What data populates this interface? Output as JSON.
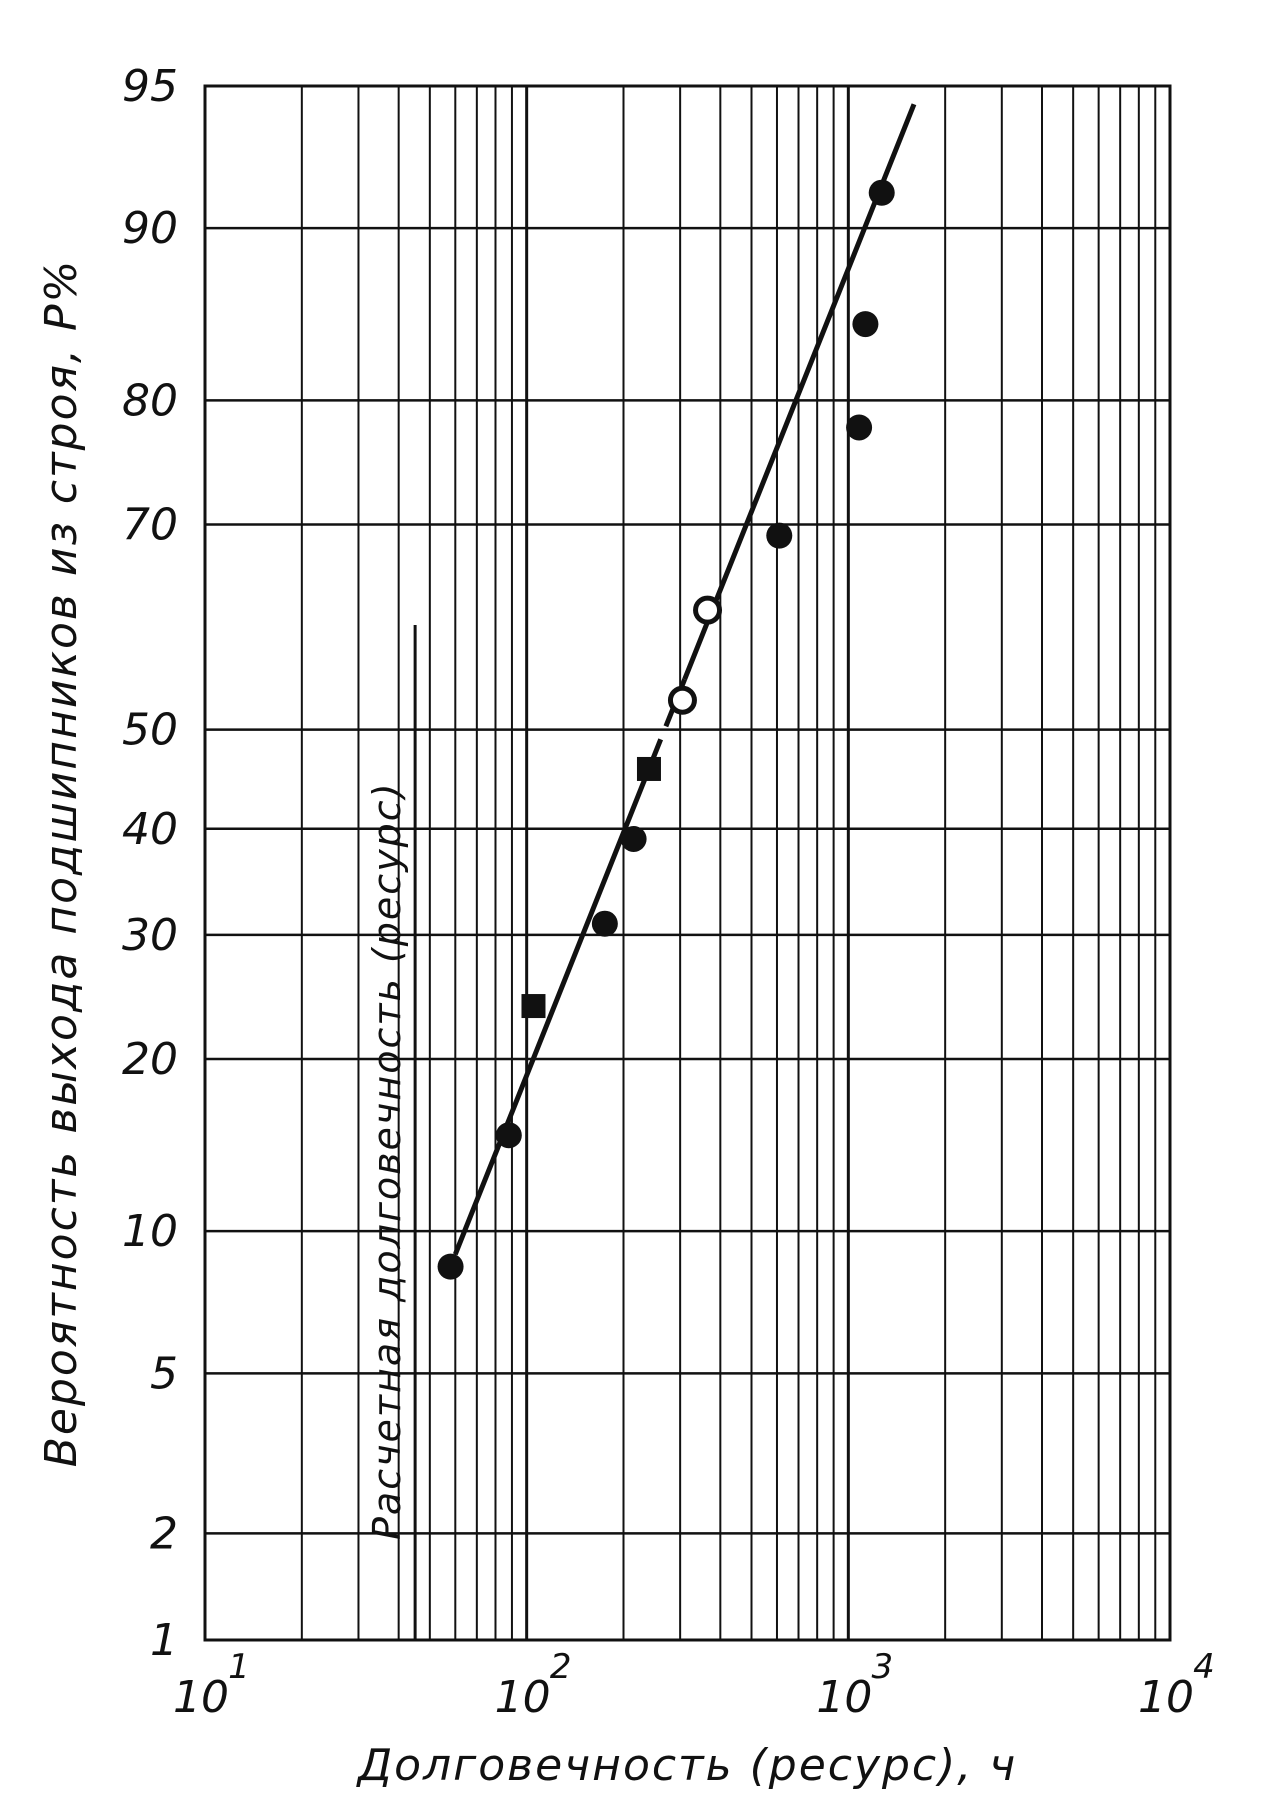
{
  "chart_data": {
    "type": "scatter",
    "title": "",
    "xlabel": "Долговечность (ресурс), ч",
    "ylabel": "Вероятность выхода подшипников из строя, P%",
    "x_scale": "log",
    "y_scale": "probability",
    "xlim": [
      10,
      10000
    ],
    "ylim": [
      1,
      95
    ],
    "grid": true,
    "x_ticks": [
      {
        "value": 10,
        "base": "10",
        "exp": "1"
      },
      {
        "value": 100,
        "base": "10",
        "exp": "2"
      },
      {
        "value": 1000,
        "base": "10",
        "exp": "3"
      },
      {
        "value": 10000,
        "base": "10",
        "exp": "4"
      }
    ],
    "y_ticks": [
      {
        "value": 1,
        "label": "1"
      },
      {
        "value": 2,
        "label": "2"
      },
      {
        "value": 5,
        "label": "5"
      },
      {
        "value": 10,
        "label": "10"
      },
      {
        "value": 20,
        "label": "20"
      },
      {
        "value": 30,
        "label": "30"
      },
      {
        "value": 40,
        "label": "40"
      },
      {
        "value": 50,
        "label": "50"
      },
      {
        "value": 70,
        "label": "70"
      },
      {
        "value": 80,
        "label": "80"
      },
      {
        "value": 90,
        "label": "90"
      },
      {
        "value": 95,
        "label": "95"
      }
    ],
    "series": [
      {
        "marker": "filled-circle",
        "points": [
          {
            "x": 58,
            "y": 8.5
          },
          {
            "x": 88,
            "y": 15
          },
          {
            "x": 175,
            "y": 31
          },
          {
            "x": 215,
            "y": 39
          },
          {
            "x": 610,
            "y": 69
          },
          {
            "x": 1080,
            "y": 78
          },
          {
            "x": 1130,
            "y": 85
          },
          {
            "x": 1270,
            "y": 91.5
          }
        ]
      },
      {
        "marker": "open-circle",
        "points": [
          {
            "x": 305,
            "y": 53
          },
          {
            "x": 365,
            "y": 62
          }
        ]
      },
      {
        "marker": "filled-square",
        "points": [
          {
            "x": 105,
            "y": 24
          },
          {
            "x": 240,
            "y": 46
          }
        ]
      }
    ],
    "fit_line": {
      "from": {
        "x": 60,
        "y": 9
      },
      "to": {
        "x": 1600,
        "y": 94.5
      },
      "style": "solid with short dashed segment"
    },
    "annotation": {
      "text": "Расчетная долговечность (ресурс)",
      "x": 45
    }
  }
}
